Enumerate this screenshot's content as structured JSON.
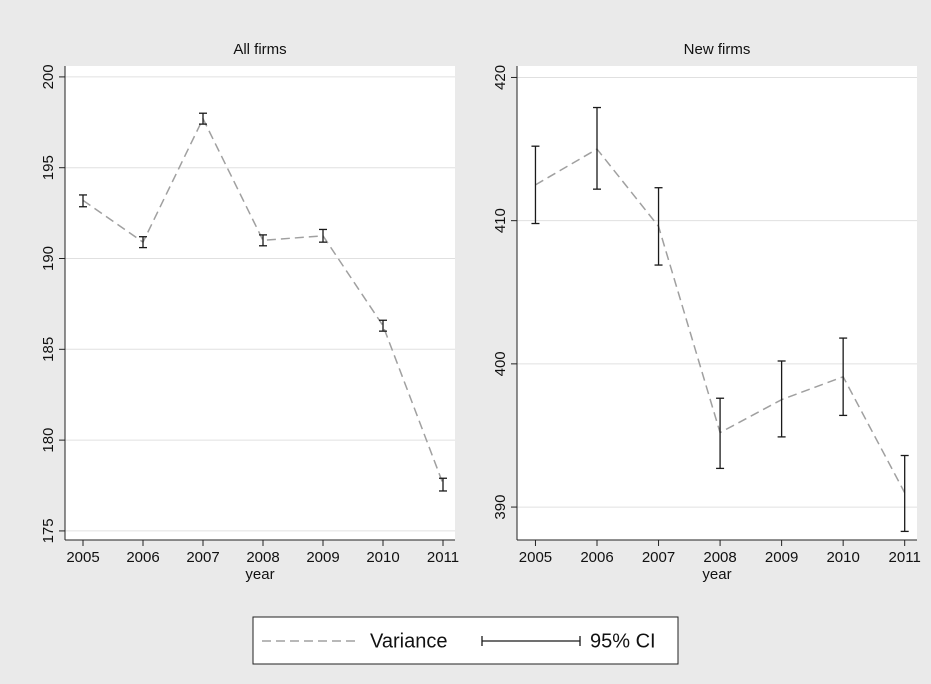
{
  "chart_data": [
    {
      "type": "line",
      "title": "All firms",
      "xlabel": "year",
      "x": [
        2005,
        2006,
        2007,
        2008,
        2009,
        2010,
        2011
      ],
      "values": [
        193.2,
        190.9,
        197.7,
        191.0,
        191.25,
        186.3,
        177.6
      ],
      "ci_lower": [
        192.85,
        190.6,
        197.4,
        190.7,
        190.9,
        186.0,
        177.2
      ],
      "ci_upper": [
        193.5,
        191.2,
        198.0,
        191.3,
        191.6,
        186.6,
        177.9
      ],
      "xlim": [
        2004.7,
        2011.2
      ],
      "xticks": [
        2005,
        2006,
        2007,
        2008,
        2009,
        2010,
        2011
      ],
      "ylim": [
        174.5,
        200.6
      ],
      "yticks": [
        175,
        180,
        185,
        190,
        195,
        200
      ],
      "line_color": "#a0a0a0",
      "ci_color": "#1a1a1a",
      "grid": true
    },
    {
      "type": "line",
      "title": "New firms",
      "xlabel": "year",
      "x": [
        2005,
        2006,
        2007,
        2008,
        2009,
        2010,
        2011
      ],
      "values": [
        412.5,
        415.0,
        409.6,
        395.2,
        397.5,
        399.1,
        391.0
      ],
      "ci_lower": [
        409.8,
        412.2,
        406.9,
        392.7,
        394.9,
        396.4,
        388.3
      ],
      "ci_upper": [
        415.2,
        417.9,
        412.3,
        397.6,
        400.2,
        401.8,
        393.6
      ],
      "xlim": [
        2004.7,
        2011.2
      ],
      "xticks": [
        2005,
        2006,
        2007,
        2008,
        2009,
        2010,
        2011
      ],
      "ylim": [
        387.7,
        420.8
      ],
      "yticks": [
        390,
        400,
        410,
        420
      ],
      "line_color": "#a0a0a0",
      "ci_color": "#1a1a1a",
      "grid": true
    }
  ],
  "legend": [
    "Variance",
    "95% CI"
  ]
}
